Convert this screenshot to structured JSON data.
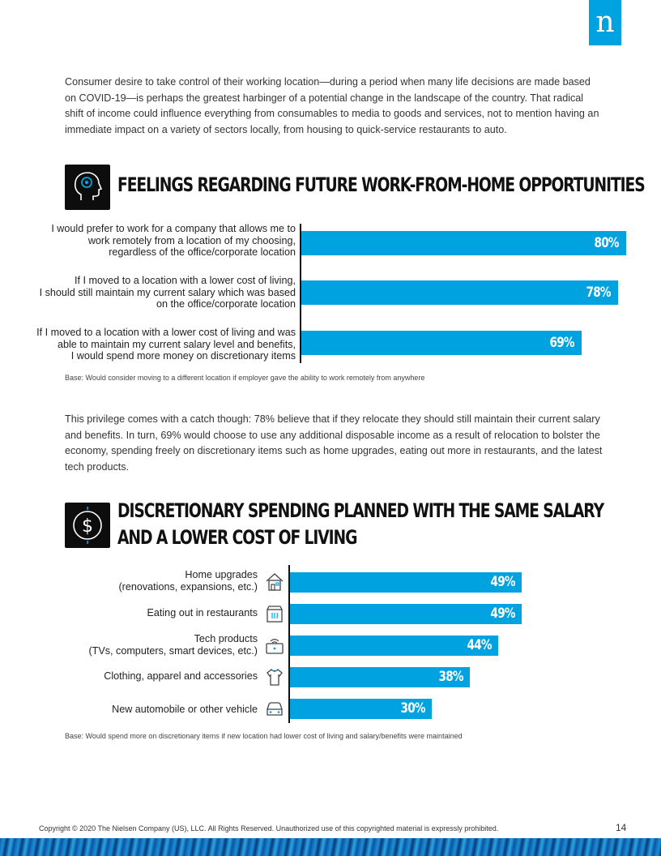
{
  "logo": {
    "letter": "n"
  },
  "paragraph1": "Consumer desire to take control of their working location—during a period when many life decisions are made based on COVID-19—is perhaps the greatest harbinger of a potential change in the landscape of the country. That radical shift of income could influence everything from consumables to media to goods and services, not to mention having an immediate impact on a variety of sectors locally, from housing to quick-service restaurants to auto.",
  "paragraph2": "This privilege comes with a catch though: 78% believe that if they relocate they should still maintain their current salary and benefits. In turn, 69% would choose to use any additional disposable income as a result of relocation to bolster the economy, spending freely on discretionary items such as home upgrades, eating out more in restaurants, and the latest tech products.",
  "colors": {
    "accent": "#00a3e0",
    "icon_bg": "#0d0d0d"
  },
  "chart_data": [
    {
      "type": "bar",
      "orientation": "horizontal",
      "title": "FEELINGS REGARDING FUTURE WORK-FROM-HOME OPPORTUNITIES",
      "icon": "head-brain-icon",
      "categories": [
        "I would prefer to work for a company that allows me to work remotely from a location of my choosing, regardless of the office/corporate location",
        "If I moved to a location with a lower cost of living, I should still maintain my current salary which was based on the office/corporate location",
        "If I moved to a location with a lower cost of living and was able to maintain my current salary level and benefits, I would spend more money on discretionary items"
      ],
      "category_lines": [
        [
          "I would prefer to work for a company that allows me to",
          "work remotely from a location of my choosing,",
          "regardless of the office/corporate location"
        ],
        [
          "If I moved to a location with a lower cost of living,",
          "I should still maintain my current salary which was based",
          "on the office/corporate location"
        ],
        [
          "If I moved to a location with a lower cost of living and was",
          "able to maintain my current salary level and benefits,",
          "I would spend more money on discretionary items"
        ]
      ],
      "values": [
        80,
        78,
        69
      ],
      "value_labels": [
        "80%",
        "78%",
        "69%"
      ],
      "base_note": "Base: Would consider moving to a different location if employer gave the ability to work remotely from anywhere"
    },
    {
      "type": "bar",
      "orientation": "horizontal",
      "title_lines": [
        "DISCRETIONARY SPENDING PLANNED WITH THE SAME SALARY",
        "AND A LOWER COST OF LIVING"
      ],
      "icon": "dollar-coin-icon",
      "categories": [
        "Home upgrades (renovations, expansions, etc.)",
        "Eating out in restaurants",
        "Tech products (TVs, computers, smart devices, etc.)",
        "Clothing, apparel and accessories",
        "New automobile or other vehicle"
      ],
      "category_lines": [
        [
          "Home upgrades",
          "(renovations, expansions, etc.)"
        ],
        [
          "Eating out in restaurants"
        ],
        [
          "Tech products",
          "(TVs, computers, smart devices, etc.)"
        ],
        [
          "Clothing, apparel and accessories"
        ],
        [
          "New automobile or other vehicle"
        ]
      ],
      "category_icons": [
        "house-icon",
        "restaurant-icon",
        "tv-wifi-icon",
        "shirt-icon",
        "car-icon"
      ],
      "values": [
        49,
        49,
        44,
        38,
        30
      ],
      "value_labels": [
        "49%",
        "49%",
        "44%",
        "38%",
        "30%"
      ],
      "base_note": "Base: Would spend more on discretionary items if new location had lower cost of living and salary/benefits were maintained"
    }
  ],
  "footer": {
    "copyright": "Copyright © 2020 The Nielsen Company (US), LLC. All Rights Reserved. Unauthorized use of this copyrighted material is expressly prohibited.",
    "page_number": "14"
  }
}
